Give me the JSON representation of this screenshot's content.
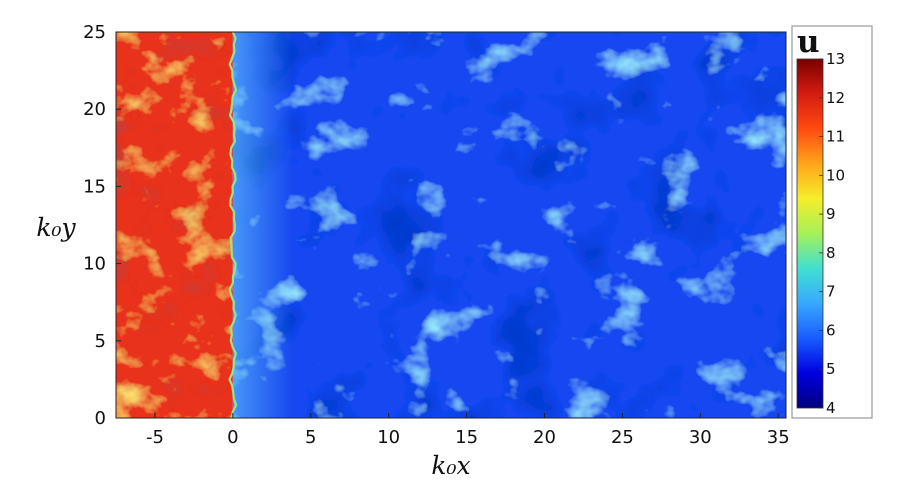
{
  "chart_data": {
    "type": "heatmap",
    "title": "",
    "xlabel": "k₀x",
    "ylabel": "k₀y",
    "xlim": [
      -7.5,
      35.5
    ],
    "ylim": [
      0,
      25
    ],
    "x_ticks": [
      -5,
      0,
      5,
      10,
      15,
      20,
      25,
      30,
      35
    ],
    "x_tick_labels": [
      "-5",
      "0",
      "5",
      "10",
      "15",
      "20",
      "25",
      "30",
      "35"
    ],
    "y_ticks": [
      0,
      5,
      10,
      15,
      20,
      25
    ],
    "y_tick_labels": [
      "0",
      "5",
      "10",
      "15",
      "20",
      "25"
    ],
    "interface_x": 0,
    "regions": [
      {
        "x_range": [
          -7.5,
          0
        ],
        "typical_u": 11.5,
        "u_range": [
          10.5,
          12.8
        ]
      },
      {
        "x_range": [
          0,
          35.5
        ],
        "typical_u": 5.7,
        "u_range": [
          4.3,
          7.6
        ]
      }
    ],
    "grid": false,
    "colorbar": {
      "title": "u",
      "min": 4,
      "max": 13,
      "ticks": [
        4,
        5,
        6,
        7,
        8,
        9,
        10,
        11,
        12,
        13
      ],
      "tick_labels": [
        "4",
        "5",
        "6",
        "7",
        "8",
        "9",
        "10",
        "11",
        "12",
        "13"
      ],
      "colors": [
        "#00007f",
        "#0000e0",
        "#1a5cff",
        "#38a8ff",
        "#40e0d0",
        "#a6f05a",
        "#f5ee2a",
        "#ffa51a",
        "#ff4a10",
        "#d41c10",
        "#7a0000"
      ],
      "placement": "right"
    },
    "colors": {
      "upstream": "#e8321a",
      "downstream": "#1647f0",
      "streak_hot": "#f7b52a",
      "streak_cool": "#56ddf5"
    }
  }
}
